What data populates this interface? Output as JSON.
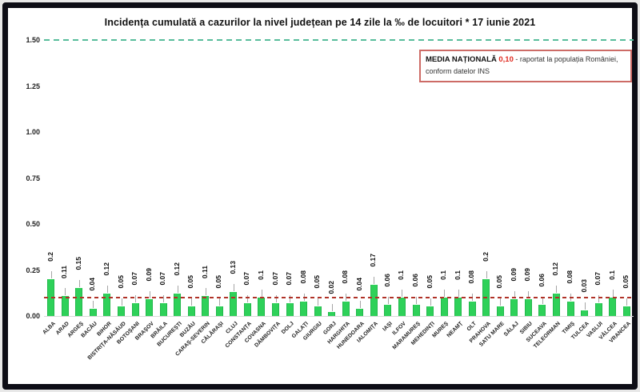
{
  "title": "Incidența cumulată a cazurilor la nivel județean pe 14 zile la ‰ de locuitori *  17 iunie 2021",
  "legend": {
    "label": "MEDIA NAȚIONALĂ",
    "value": "0,10",
    "text": "- raportat la populația României, conform datelor INS"
  },
  "colors": {
    "bar": "#2ed159",
    "avg_line": "#b03228",
    "top_line": "#57bd9b",
    "legend_border": "#cd6b66",
    "legend_value": "#e02b20",
    "frame_border": "#0d0d16"
  },
  "chart_data": {
    "type": "bar",
    "title": "Incidența cumulată a cazurilor la nivel județean pe 14 zile la ‰ de locuitori *  17 iunie 2021",
    "xlabel": "",
    "ylabel": "",
    "ylim": [
      0,
      1.5
    ],
    "yticks": [
      "0.00",
      "0.25",
      "0.50",
      "0.75",
      "1.00",
      "1.25",
      "1.50"
    ],
    "grid": false,
    "legend_position": "top-right",
    "national_average": 0.1,
    "top_reference_line": 1.5,
    "categories": [
      "ALBA",
      "ARAD",
      "ARGEȘ",
      "BACĂU",
      "BIHOR",
      "BISTRIȚA-NĂSĂUD",
      "BOTOȘANI",
      "BRAȘOV",
      "BRĂILA",
      "BUCUREȘTI",
      "BUZĂU",
      "CARAȘ-SEVERIN",
      "CĂLĂRAȘI",
      "CLUJ",
      "CONSTANȚA",
      "COVASNA",
      "DÂMBOVIȚA",
      "DOLJ",
      "GALAȚI",
      "GIURGIU",
      "GORJ",
      "HARGHITA",
      "HUNEDOARA",
      "IALOMIȚA",
      "IAȘI",
      "ILFOV",
      "MARAMUREȘ",
      "MEHEDINȚI",
      "MUREȘ",
      "NEAMȚ",
      "OLT",
      "PRAHOVA",
      "SATU MARE",
      "SĂLAJ",
      "SIBIU",
      "SUCEAVA",
      "TELEORMAN",
      "TIMIȘ",
      "TULCEA",
      "VASLUI",
      "VÂLCEA",
      "VRANCEA"
    ],
    "values": [
      0.2,
      0.11,
      0.15,
      0.04,
      0.12,
      0.05,
      0.07,
      0.09,
      0.07,
      0.12,
      0.05,
      0.11,
      0.05,
      0.13,
      0.07,
      0.1,
      0.07,
      0.07,
      0.08,
      0.05,
      0.02,
      0.08,
      0.04,
      0.17,
      0.06,
      0.1,
      0.06,
      0.05,
      0.1,
      0.1,
      0.08,
      0.2,
      0.05,
      0.09,
      0.09,
      0.06,
      0.12,
      0.08,
      0.03,
      0.07,
      0.1,
      0.05
    ]
  }
}
